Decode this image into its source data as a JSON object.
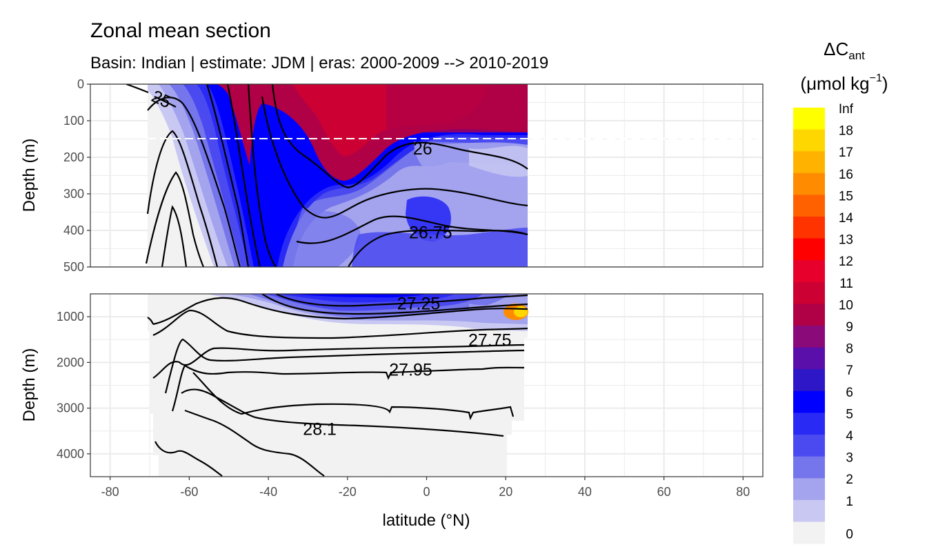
{
  "chart_data": {
    "type": "contour",
    "title": "Zonal mean section",
    "subtitle": "Basin: Indian | estimate: JDM  | eras: 2000-2009 --> 2010-2019",
    "xlabel": "latitude (°N)",
    "ylabel": "Depth (m)",
    "xlim": [
      -85,
      85
    ],
    "x_ticks": [
      -80,
      -60,
      -40,
      -20,
      0,
      20,
      40,
      60,
      80
    ],
    "data_lat_range": [
      -70,
      25
    ],
    "highlight_depth": 150,
    "panels": [
      {
        "name": "upper",
        "ylim": [
          0,
          500
        ],
        "y_ticks": [
          0,
          100,
          200,
          300,
          400,
          500
        ],
        "contour_labels": [
          {
            "text": "25",
            "lat": -67,
            "depth": 40
          },
          {
            "text": "26",
            "lat": -1,
            "depth": 175
          },
          {
            "text": "26.75",
            "lat": 1,
            "depth": 405
          }
        ]
      },
      {
        "name": "lower",
        "ylim": [
          500,
          4500
        ],
        "y_ticks": [
          1000,
          2000,
          3000,
          4000
        ],
        "contour_labels": [
          {
            "text": "27.25",
            "lat": -2,
            "depth": 700
          },
          {
            "text": "27.75",
            "lat": 16,
            "depth": 1500
          },
          {
            "text": "27.95",
            "lat": -4,
            "depth": 2150
          },
          {
            "text": "28.1",
            "lat": -27,
            "depth": 3450
          }
        ]
      }
    ],
    "legend": {
      "title_main": "ΔC",
      "title_sub": "ant",
      "title_units": "(μmol kg",
      "title_sup": "−1",
      "title_close": ")",
      "breaks": [
        "Inf",
        "18",
        "17",
        "16",
        "15",
        "14",
        "13",
        "12",
        "11",
        "10",
        "9",
        "8",
        "7",
        "6",
        "5",
        "4",
        "3",
        "2",
        "1",
        "0"
      ],
      "colors": [
        "#ffff00",
        "#ffd700",
        "#ffb300",
        "#ff8c00",
        "#ff6000",
        "#ff3300",
        "#ff0000",
        "#e6002b",
        "#cc0033",
        "#b00046",
        "#8b0a7a",
        "#5a0eaa",
        "#2d17c6",
        "#0000ff",
        "#2a2af5",
        "#4a4af0",
        "#7575ec",
        "#a3a3ee",
        "#c8c8f3",
        "#f2f2f2"
      ]
    },
    "field_colors": {
      "bg": "#f2f2f2",
      "c1": "#c8c8f3",
      "c2": "#a3a3ee",
      "c3": "#7575ec",
      "c4": "#4a4af0",
      "c5": "#2a2af5",
      "c6": "#0000ff",
      "c10": "#b00046",
      "c11": "#cc0033",
      "c15": "#ff8c00",
      "c17": "#ffd700"
    }
  }
}
